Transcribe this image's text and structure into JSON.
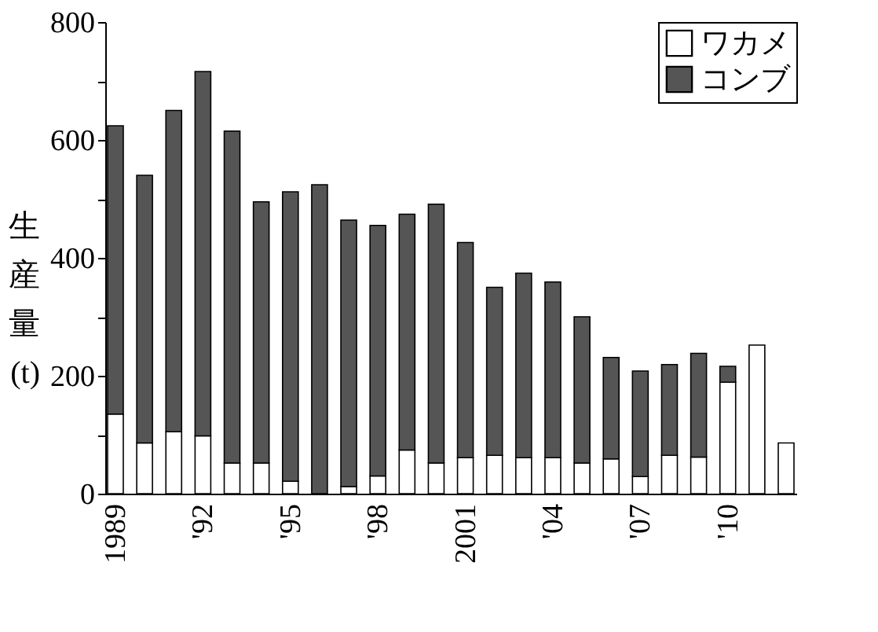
{
  "chart_data": {
    "type": "bar",
    "stacked": true,
    "ylabel": "生産量(t)",
    "categories": [
      "1989",
      null,
      null,
      "'92",
      null,
      null,
      "'95",
      null,
      null,
      "'98",
      null,
      null,
      "2001",
      null,
      null,
      "'04",
      null,
      null,
      "'07",
      null,
      null,
      "'10",
      null,
      null
    ],
    "series": [
      {
        "name": "ワカメ",
        "color": "#ffffff",
        "values": [
          135,
          86,
          105,
          98,
          52,
          52,
          21,
          0,
          12,
          30,
          74,
          52,
          61,
          65,
          61,
          61,
          52,
          59,
          29,
          65,
          62,
          189,
          252,
          86
        ]
      },
      {
        "name": "コンブ",
        "color": "#555555",
        "values": [
          489,
          454,
          545,
          618,
          563,
          443,
          491,
          524,
          452,
          425,
          400,
          439,
          365,
          285,
          313,
          298,
          248,
          172,
          179,
          154,
          176,
          27,
          0,
          0
        ]
      }
    ],
    "ylim": [
      0,
      800
    ],
    "yticks": [
      0,
      {
        "value": 100,
        "label": null
      },
      200,
      {
        "value": 300,
        "label": null
      },
      400,
      {
        "value": 500,
        "label": null
      },
      600,
      {
        "value": 700,
        "label": null
      },
      800
    ],
    "grid": false,
    "legend": "top right"
  }
}
